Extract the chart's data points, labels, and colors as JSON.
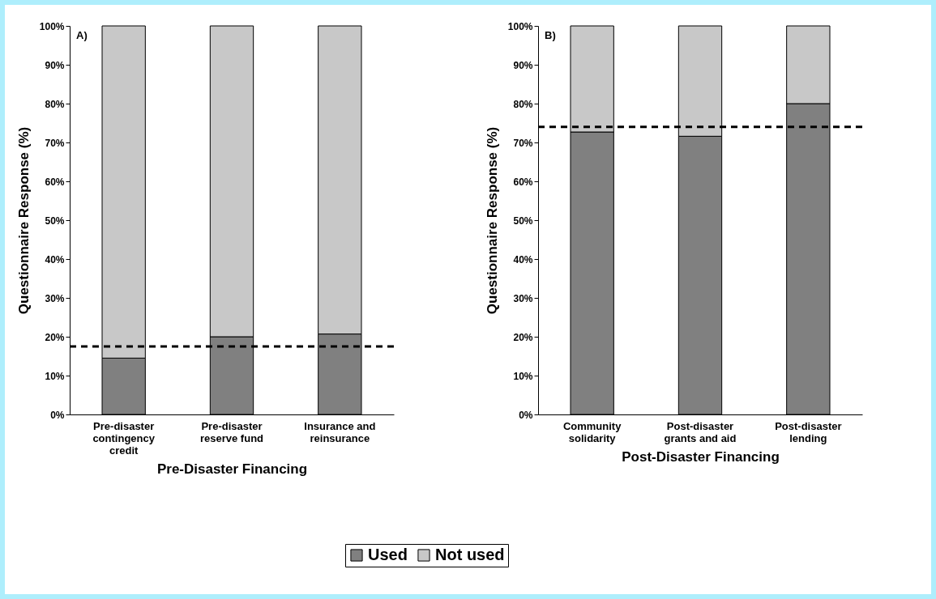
{
  "chart_data": [
    {
      "type": "bar",
      "stacked": true,
      "xlabel": "Pre-Disaster Financing",
      "ylabel": "Questionnaire Response (%)",
      "annotations": [
        "A)"
      ],
      "categories": [
        "Pre-disaster contingency credit",
        "Pre-disaster reserve fund",
        "Insurance and reinsurance"
      ],
      "series": [
        {
          "name": "Used",
          "color": "#808080",
          "values": [
            14.5,
            20,
            20.7
          ]
        },
        {
          "name": "Not used",
          "color": "#c8c8c8",
          "values": [
            85.5,
            80,
            79.3
          ]
        }
      ],
      "ylim": [
        0,
        100
      ],
      "yticks": [
        {
          "value": 0,
          "label": "0%"
        },
        {
          "value": 10,
          "label": "10%"
        },
        {
          "value": 20,
          "label": "20%"
        },
        {
          "value": 30,
          "label": "30%"
        },
        {
          "value": 40,
          "label": "40%"
        },
        {
          "value": 50,
          "label": "50%"
        },
        {
          "value": 60,
          "label": "60%"
        },
        {
          "value": 70,
          "label": "70%"
        },
        {
          "value": 80,
          "label": "80%"
        },
        {
          "value": 90,
          "label": "90%"
        },
        {
          "value": 100,
          "label": "100%"
        }
      ],
      "ref_lines": [
        {
          "axis": "y",
          "value": 17.5,
          "color": "#000000",
          "line_style": "dashed"
        }
      ],
      "legend": "bottom"
    },
    {
      "type": "bar",
      "stacked": true,
      "xlabel": "Post-Disaster Financing",
      "ylabel": "Questionnaire Response (%)",
      "annotations": [
        "B)"
      ],
      "categories": [
        "Community solidarity",
        "Post-disaster grants and aid",
        "Post-disaster lending"
      ],
      "series": [
        {
          "name": "Used",
          "color": "#808080",
          "values": [
            72.7,
            71.6,
            80
          ]
        },
        {
          "name": "Not used",
          "color": "#c8c8c8",
          "values": [
            27.3,
            28.4,
            20
          ]
        }
      ],
      "ylim": [
        0,
        100
      ],
      "yticks": [
        {
          "value": 0,
          "label": "0%"
        },
        {
          "value": 10,
          "label": "10%"
        },
        {
          "value": 20,
          "label": "20%"
        },
        {
          "value": 30,
          "label": "30%"
        },
        {
          "value": 40,
          "label": "40%"
        },
        {
          "value": 50,
          "label": "50%"
        },
        {
          "value": 60,
          "label": "60%"
        },
        {
          "value": 70,
          "label": "70%"
        },
        {
          "value": 80,
          "label": "80%"
        },
        {
          "value": 90,
          "label": "90%"
        },
        {
          "value": 100,
          "label": "100%"
        }
      ],
      "ref_lines": [
        {
          "axis": "y",
          "value": 74,
          "color": "#000000",
          "line_style": "dashed"
        }
      ],
      "legend": "bottom"
    }
  ]
}
